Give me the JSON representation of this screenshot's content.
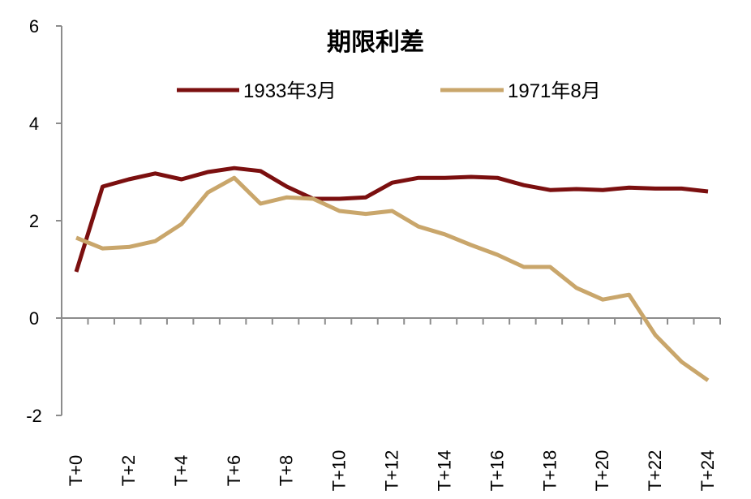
{
  "chart_data": {
    "type": "line",
    "title": "期限利差",
    "xlabel": "",
    "ylabel": "",
    "ylim": [
      -2,
      6
    ],
    "yticks": [
      "-2",
      "0",
      "2",
      "4",
      "6"
    ],
    "x": [
      "T+0",
      "T+1",
      "T+2",
      "T+3",
      "T+4",
      "T+5",
      "T+6",
      "T+7",
      "T+8",
      "T+9",
      "T+10",
      "T+11",
      "T+12",
      "T+13",
      "T+14",
      "T+15",
      "T+16",
      "T+17",
      "T+18",
      "T+19",
      "T+20",
      "T+21",
      "T+22",
      "T+23",
      "T+24"
    ],
    "xtick_labels": [
      "T+0",
      "T+2",
      "T+4",
      "T+6",
      "T+8",
      "T+10",
      "T+12",
      "T+14",
      "T+16",
      "T+18",
      "T+20",
      "T+22",
      "T+24"
    ],
    "legend_position": "top-center",
    "grid": false,
    "series": [
      {
        "name": "1933年3月",
        "color": "#7B0F0F",
        "values": [
          0.95,
          2.7,
          2.85,
          2.97,
          2.85,
          3.0,
          3.08,
          3.02,
          2.7,
          2.45,
          2.45,
          2.48,
          2.78,
          2.88,
          2.88,
          2.9,
          2.88,
          2.73,
          2.63,
          2.65,
          2.63,
          2.68,
          2.66,
          2.66,
          2.6
        ]
      },
      {
        "name": "1971年8月",
        "color": "#C9A66B",
        "values": [
          1.65,
          1.43,
          1.46,
          1.58,
          1.93,
          2.58,
          2.88,
          2.35,
          2.48,
          2.45,
          2.2,
          2.14,
          2.2,
          1.88,
          1.72,
          1.5,
          1.3,
          1.05,
          1.05,
          0.62,
          0.38,
          0.48,
          -0.35,
          -0.9,
          -1.28
        ]
      }
    ]
  }
}
